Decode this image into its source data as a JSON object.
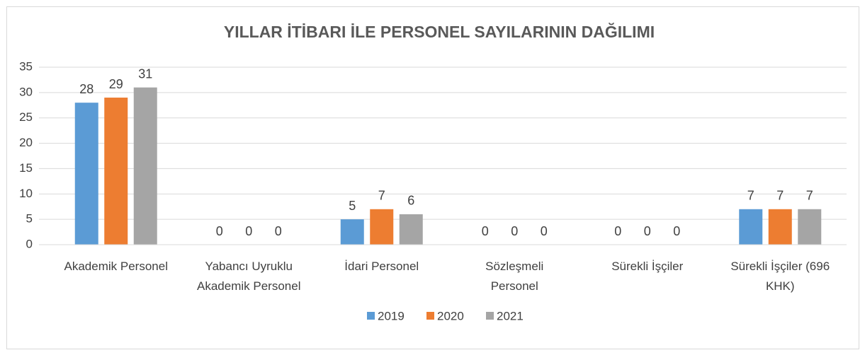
{
  "chart_data": {
    "type": "bar",
    "title": "YILLAR İTİBARI İLE PERSONEL SAYILARININ DAĞILIMI",
    "categories": [
      "Akademik Personel",
      "Yabancı Uyruklu\nAkademik Personel",
      "İdari Personel",
      "Sözleşmeli\nPersonel",
      "Sürekli İşçiler",
      "Sürekli İşçiler (696\nKHK)"
    ],
    "series": [
      {
        "name": "2019",
        "color": "#5b9bd5",
        "values": [
          28,
          0,
          5,
          0,
          0,
          7
        ]
      },
      {
        "name": "2020",
        "color": "#ed7d31",
        "values": [
          29,
          0,
          7,
          0,
          0,
          7
        ]
      },
      {
        "name": "2021",
        "color": "#a5a5a5",
        "values": [
          31,
          0,
          6,
          0,
          0,
          7
        ]
      }
    ],
    "ylim": [
      0,
      35
    ],
    "yticks": [
      0,
      5,
      10,
      15,
      20,
      25,
      30,
      35
    ],
    "grid": true,
    "legend": "bottom"
  }
}
